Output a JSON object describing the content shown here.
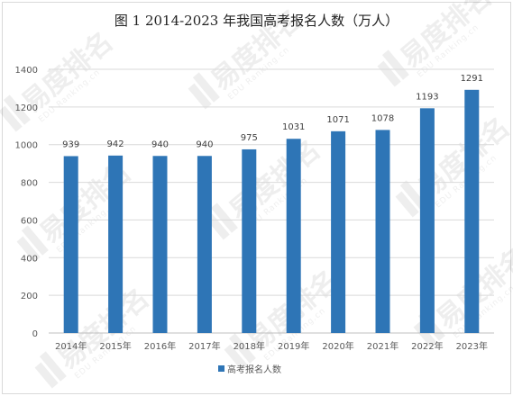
{
  "chart_data": {
    "type": "bar",
    "title": "图 1 2014-2023 年我国高考报名人数（万人）",
    "categories": [
      "2014年",
      "2015年",
      "2016年",
      "2017年",
      "2018年",
      "2019年",
      "2020年",
      "2021年",
      "2022年",
      "2023年"
    ],
    "series": [
      {
        "name": "高考报名人数",
        "values": [
          939,
          942,
          940,
          940,
          975,
          1031,
          1071,
          1078,
          1193,
          1291
        ],
        "color": "#2e75b6"
      }
    ],
    "ylim": [
      0,
      1400
    ],
    "yticks": [
      0,
      200,
      400,
      600,
      800,
      1000,
      1200,
      1400
    ],
    "grid": "horizontal",
    "legend_position": "bottom",
    "data_labels": true
  },
  "watermark": {
    "brand": "易度排名",
    "sub": "EDU Ranking.cn"
  }
}
